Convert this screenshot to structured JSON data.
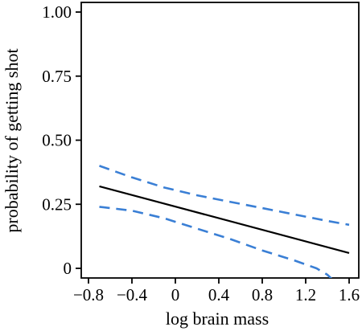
{
  "chart_data": {
    "type": "line",
    "title": "",
    "xlabel": "log brain mass",
    "ylabel": "probability of getting shot",
    "xlim": [
      -0.8,
      1.65
    ],
    "ylim": [
      0,
      1.05
    ],
    "x_ticks": [
      -0.8,
      -0.4,
      0,
      0.4,
      0.8,
      1.2,
      1.6
    ],
    "x_tick_labels": [
      "−0.8",
      "−0.4",
      "0",
      "0.4",
      "0.8",
      "1.2",
      "1.6"
    ],
    "y_ticks": [
      0,
      0.25,
      0.5,
      0.75,
      1.0
    ],
    "y_tick_labels": [
      "0",
      "0.25",
      "0.50",
      "0.75",
      "1.00"
    ],
    "grid": false,
    "series": [
      {
        "style": "solid",
        "color": "#000000",
        "x": [
          -0.7,
          1.6
        ],
        "y": [
          0.32,
          0.06
        ]
      },
      {
        "style": "dashed",
        "color": "#3a7fd5",
        "x": [
          -0.7,
          -0.4,
          -0.1,
          0.2,
          0.5,
          0.8,
          1.1,
          1.4,
          1.6
        ],
        "y": [
          0.4,
          0.355,
          0.315,
          0.285,
          0.26,
          0.235,
          0.21,
          0.185,
          0.17
        ]
      },
      {
        "style": "dashed",
        "color": "#3a7fd5",
        "x": [
          -0.7,
          -0.4,
          -0.1,
          0.2,
          0.5,
          0.8,
          1.1,
          1.3,
          1.4,
          1.45
        ],
        "y": [
          0.24,
          0.225,
          0.195,
          0.155,
          0.115,
          0.07,
          0.03,
          0.0,
          -0.025,
          -0.045
        ]
      }
    ]
  }
}
